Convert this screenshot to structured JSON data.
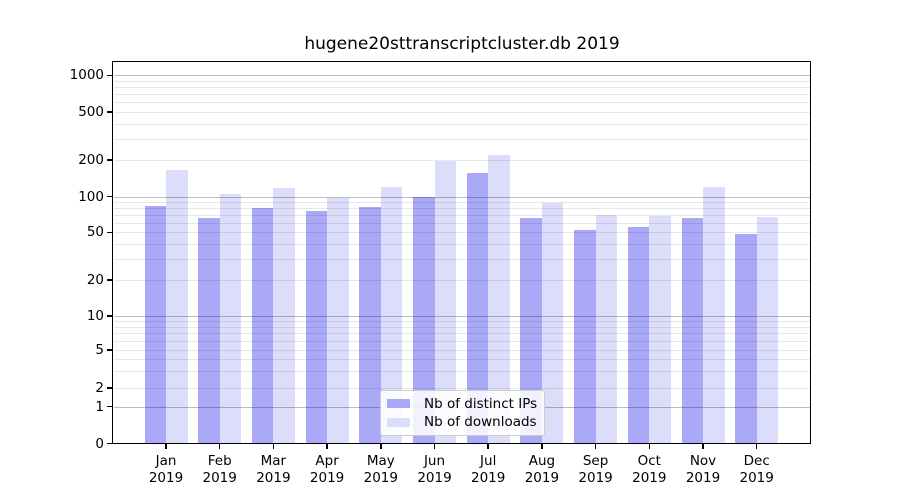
{
  "chart_data": {
    "type": "bar",
    "title": "hugene20sttranscriptcluster.db 2019",
    "categories": [
      "Jan 2019",
      "Feb 2019",
      "Mar 2019",
      "Apr 2019",
      "May 2019",
      "Jun 2019",
      "Jul 2019",
      "Aug 2019",
      "Sep 2019",
      "Oct 2019",
      "Nov 2019",
      "Dec 2019"
    ],
    "series": [
      {
        "name": "Nb of distinct IPs",
        "color": "#a9a9f7",
        "values": [
          84,
          66,
          80,
          75,
          81,
          100,
          155,
          66,
          52,
          56,
          66,
          49
        ]
      },
      {
        "name": "Nb of downloads",
        "color": "#dcdcfb",
        "values": [
          167,
          104,
          118,
          98,
          119,
          197,
          218,
          89,
          70,
          69,
          120,
          68
        ]
      }
    ],
    "xlabel": "",
    "ylabel": "",
    "yscale": "log with linear region near zero",
    "yticks": [
      1000,
      500,
      200,
      100,
      50,
      20,
      10,
      5,
      2,
      1,
      0
    ],
    "ylim": [
      0,
      1285
    ],
    "grid": true,
    "legend_position": "inside bottom-center"
  },
  "colors": {
    "bar_distinct_ips": "#a9a9f7",
    "bar_downloads": "#dcdcfb",
    "major_gridline": "#bdbdbd",
    "minor_gridline": "#e8e8e8",
    "axis": "#000000",
    "legend_border": "#cccccc",
    "background": "#ffffff",
    "text": "#000000"
  }
}
